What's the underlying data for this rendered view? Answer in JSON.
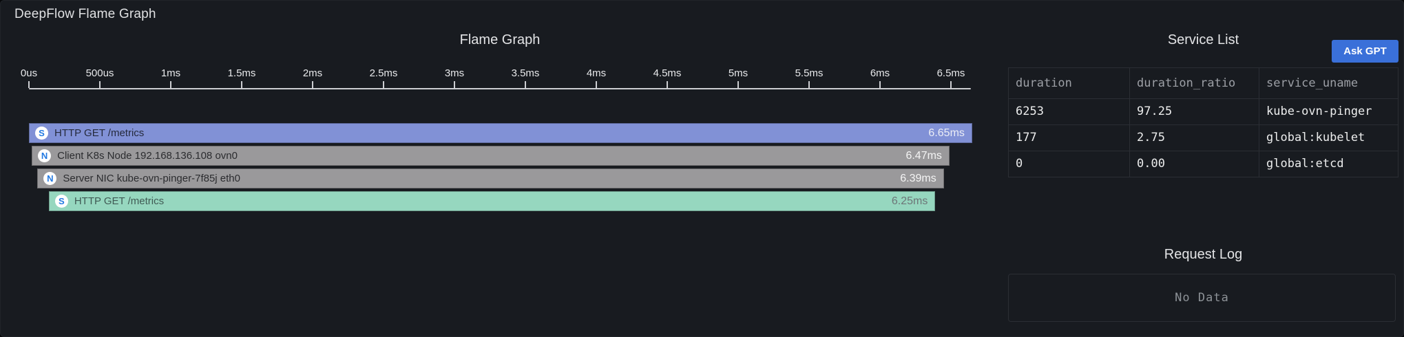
{
  "panel": {
    "title": "DeepFlow Flame Graph",
    "background_color": "#181b20"
  },
  "flame": {
    "title": "Flame Graph",
    "axis": {
      "ticks": [
        "0us",
        "500us",
        "1ms",
        "1.5ms",
        "2ms",
        "2.5ms",
        "3ms",
        "3.5ms",
        "4ms",
        "4.5ms",
        "5ms",
        "5.5ms",
        "6ms",
        "6.5ms"
      ],
      "unit": "ms"
    },
    "bars": [
      {
        "icon": "S",
        "label": "HTTP GET /metrics",
        "duration_label": "6.65ms",
        "duration_ms": 6.65,
        "start_ms": 0.0,
        "color": "#8191d6",
        "label_color": "rgba(10,12,16,0.78)",
        "value_color": "#eceef6"
      },
      {
        "icon": "N",
        "label": "Client K8s Node 192.168.136.108 ovn0",
        "duration_label": "6.47ms",
        "duration_ms": 6.47,
        "start_ms": 0.02,
        "color": "#9a999b",
        "label_color": "rgba(10,12,16,0.78)",
        "value_color": "#f4f4f4"
      },
      {
        "icon": "N",
        "label": "Server NIC kube-ovn-pinger-7f85j eth0",
        "duration_label": "6.39ms",
        "duration_ms": 6.39,
        "start_ms": 0.06,
        "color": "#9a999b",
        "label_color": "rgba(10,12,16,0.78)",
        "value_color": "#f4f4f4"
      },
      {
        "icon": "S",
        "label": "HTTP GET /metrics",
        "duration_label": "6.25ms",
        "duration_ms": 6.25,
        "start_ms": 0.14,
        "color": "#96d7bf",
        "label_color": "rgba(10,12,16,0.62)",
        "value_color": "#6d7577"
      }
    ]
  },
  "service_list": {
    "title": "Service List",
    "ask_gpt_label": "Ask GPT",
    "ask_gpt_color": "#3a70d9",
    "columns": [
      "duration",
      "duration_ratio",
      "service_uname"
    ],
    "rows": [
      [
        "6253",
        "97.25",
        "kube-ovn-pinger"
      ],
      [
        "177",
        "2.75",
        "global:kubelet"
      ],
      [
        "0",
        "0.00",
        "global:etcd"
      ]
    ]
  },
  "request_log": {
    "title": "Request Log",
    "empty_text": "No Data"
  }
}
